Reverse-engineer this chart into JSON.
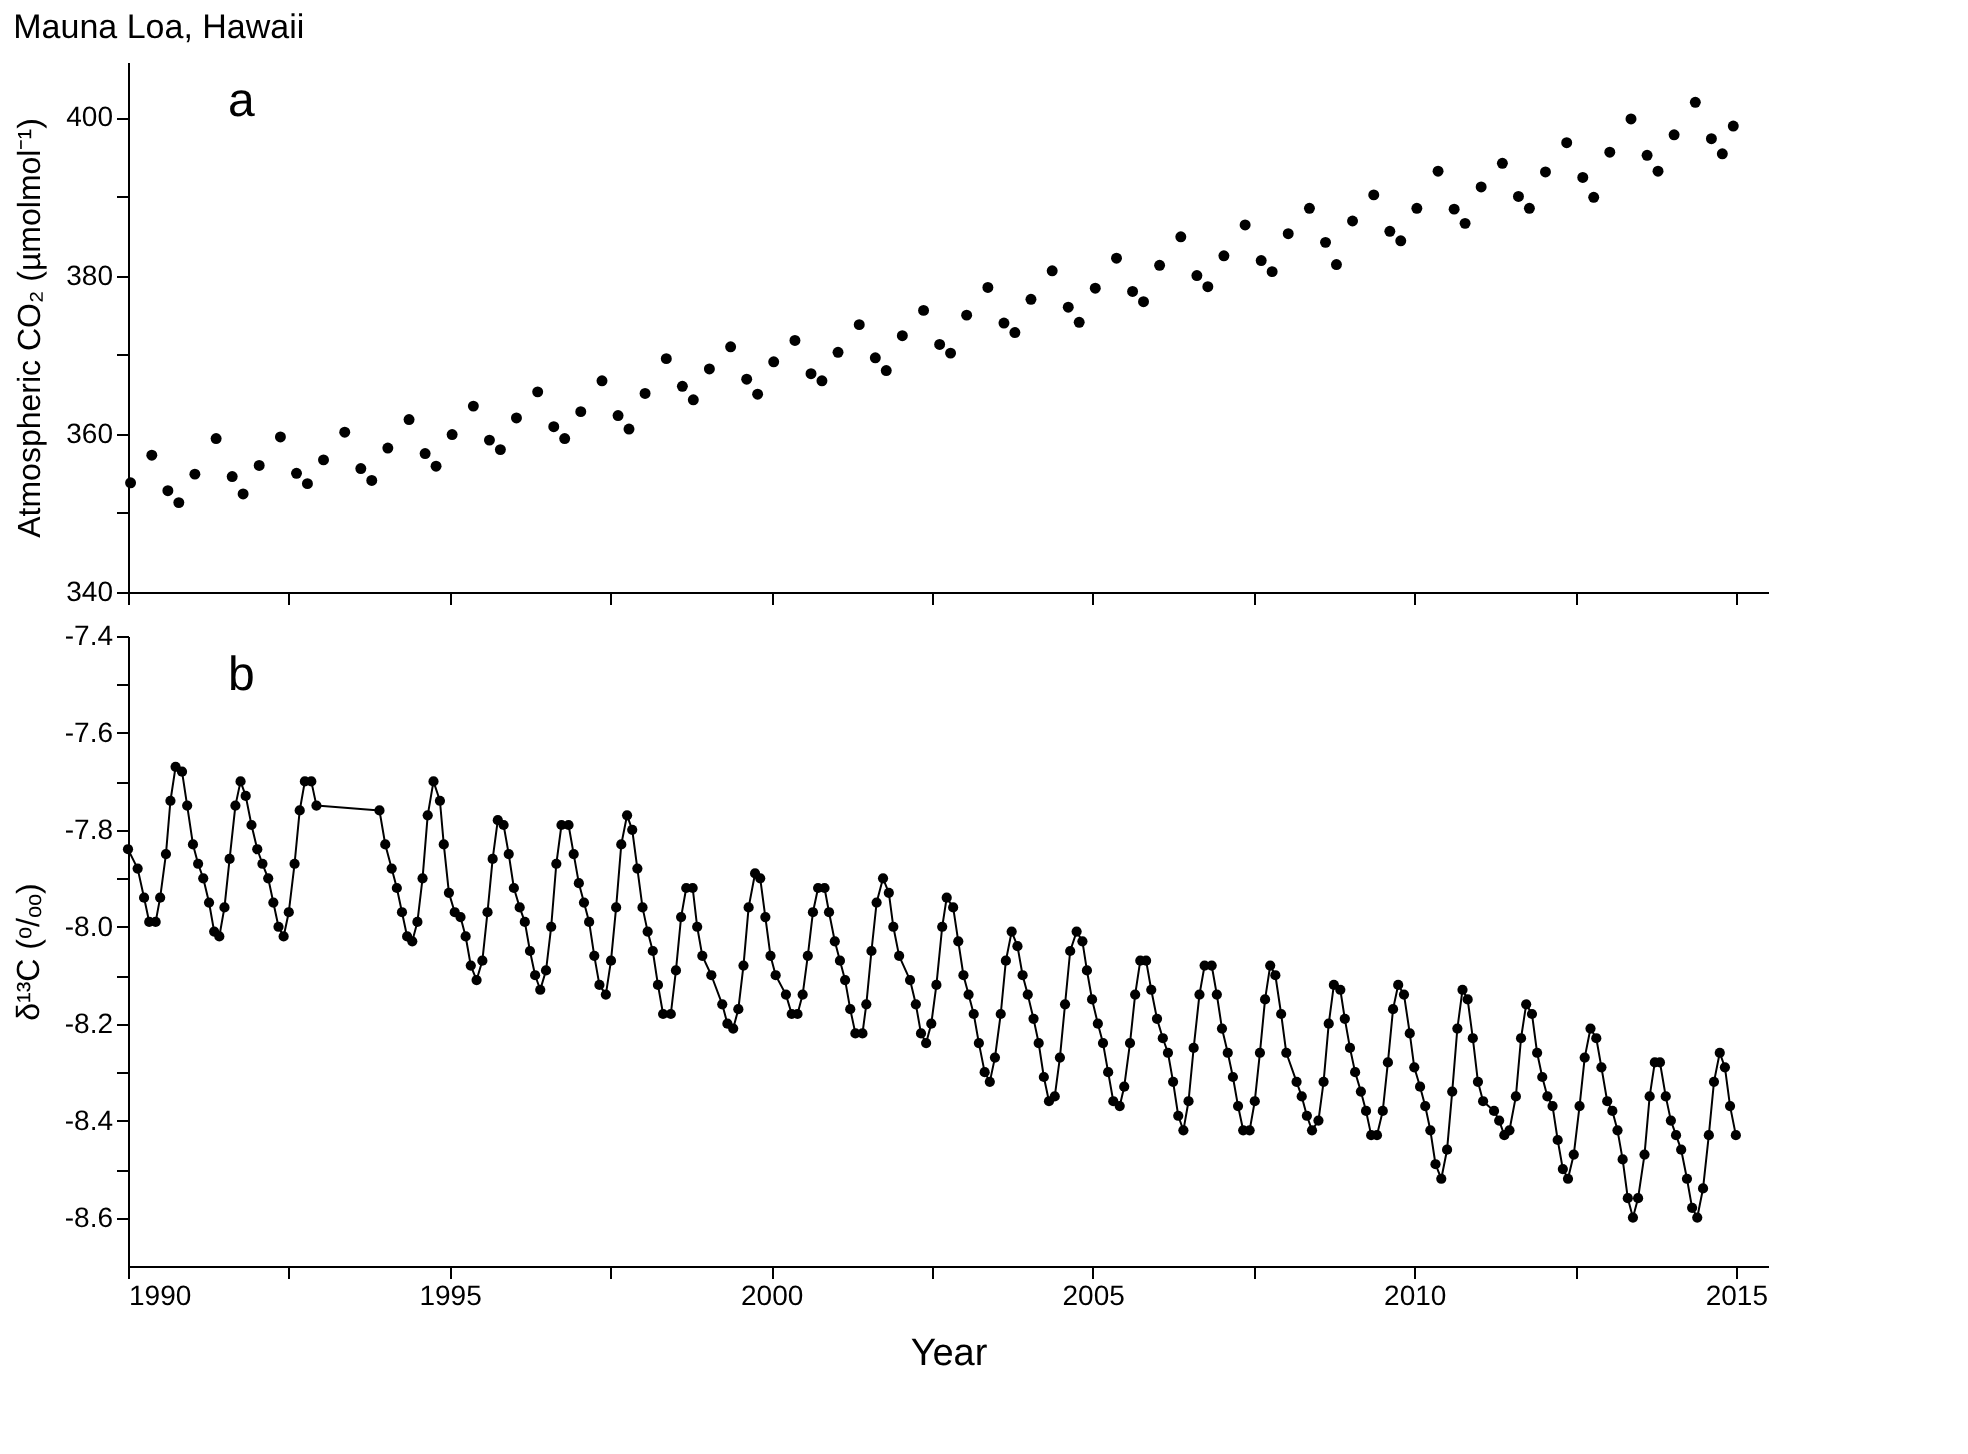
{
  "chart_data": [
    {
      "type": "scatter",
      "title": "Mauna Loa, Hawaii",
      "ylabel": "Atmospheric CO₂ (µmolmol⁻¹)",
      "annotations": [
        "a"
      ],
      "marker": "circle",
      "tick_labels": "y",
      "xlim": [
        1990,
        2015.5
      ],
      "xticks": [
        {
          "value": 1990,
          "label": null
        },
        {
          "value": 1992.5,
          "label": null
        },
        {
          "value": 1995,
          "label": null
        },
        {
          "value": 1997.5,
          "label": null
        },
        {
          "value": 2000,
          "label": null
        },
        {
          "value": 2002.5,
          "label": null
        },
        {
          "value": 2005,
          "label": null
        },
        {
          "value": 2007.5,
          "label": null
        },
        {
          "value": 2010,
          "label": null
        },
        {
          "value": 2012.5,
          "label": null
        },
        {
          "value": 2015,
          "label": null
        }
      ],
      "ylim": [
        340,
        407
      ],
      "yticks": [
        340,
        {
          "value": 350,
          "label": null
        },
        360,
        {
          "value": 370,
          "label": null
        },
        380,
        {
          "value": 390,
          "label": null
        },
        400
      ],
      "series": [
        {
          "color": "#000000",
          "x": [
            1990.04,
            1990.37,
            1990.62,
            1990.79,
            1991.04,
            1991.37,
            1991.62,
            1991.79,
            1992.04,
            1992.37,
            1992.62,
            1992.79,
            1993.04,
            1993.37,
            1993.62,
            1993.79,
            1994.04,
            1994.37,
            1994.62,
            1994.79,
            1995.04,
            1995.37,
            1995.62,
            1995.79,
            1996.04,
            1996.37,
            1996.62,
            1996.79,
            1997.04,
            1997.37,
            1997.62,
            1997.79,
            1998.04,
            1998.37,
            1998.62,
            1998.79,
            1999.04,
            1999.37,
            1999.62,
            1999.79,
            2000.04,
            2000.37,
            2000.62,
            2000.79,
            2001.04,
            2001.37,
            2001.62,
            2001.79,
            2002.04,
            2002.37,
            2002.62,
            2002.79,
            2003.04,
            2003.37,
            2003.62,
            2003.79,
            2004.04,
            2004.37,
            2004.62,
            2004.79,
            2005.04,
            2005.37,
            2005.62,
            2005.79,
            2006.04,
            2006.37,
            2006.62,
            2006.79,
            2007.04,
            2007.37,
            2007.62,
            2007.79,
            2008.04,
            2008.37,
            2008.62,
            2008.79,
            2009.04,
            2009.37,
            2009.62,
            2009.79,
            2010.04,
            2010.37,
            2010.62,
            2010.79,
            2011.04,
            2011.37,
            2011.62,
            2011.79,
            2012.04,
            2012.37,
            2012.62,
            2012.79,
            2013.04,
            2013.37,
            2013.62,
            2013.79,
            2014.04,
            2014.37,
            2014.62,
            2014.79,
            2014.96
          ],
          "values": [
            353.8,
            357.3,
            352.8,
            351.3,
            354.9,
            359.4,
            354.6,
            352.4,
            356.0,
            359.6,
            355.0,
            353.7,
            356.7,
            360.2,
            355.6,
            354.1,
            358.2,
            361.8,
            357.5,
            355.9,
            359.9,
            363.5,
            359.2,
            358.0,
            362.0,
            365.3,
            360.9,
            359.4,
            362.8,
            366.7,
            362.3,
            360.6,
            365.1,
            369.5,
            366.0,
            364.3,
            368.2,
            371.0,
            366.9,
            365.0,
            369.1,
            371.8,
            367.6,
            366.7,
            370.3,
            373.8,
            369.6,
            368.0,
            372.4,
            375.6,
            371.3,
            370.2,
            375.0,
            378.5,
            374.0,
            372.8,
            377.0,
            380.6,
            376.0,
            374.1,
            378.4,
            382.2,
            378.0,
            376.7,
            381.3,
            384.9,
            380.0,
            378.6,
            382.5,
            386.4,
            381.9,
            380.5,
            385.3,
            388.5,
            384.2,
            381.4,
            386.9,
            390.2,
            385.6,
            384.4,
            388.5,
            393.2,
            388.4,
            386.6,
            391.2,
            394.2,
            390.0,
            388.5,
            393.1,
            396.8,
            392.4,
            389.9,
            395.6,
            399.8,
            395.2,
            393.2,
            397.8,
            401.9,
            397.3,
            395.4,
            398.9
          ]
        }
      ]
    },
    {
      "type": "line",
      "xlabel": "Year",
      "ylabel": "δ¹³C (ᵒ/ₒₒ)",
      "annotations": [
        "b"
      ],
      "marker": "circle",
      "line_style": "solid",
      "xlim": [
        1990,
        2015.5
      ],
      "xticks": [
        1990,
        {
          "value": 1992.5,
          "label": null
        },
        1995,
        {
          "value": 1997.5,
          "label": null
        },
        2000,
        {
          "value": 2002.5,
          "label": null
        },
        2005,
        {
          "value": 2007.5,
          "label": null
        },
        2010,
        {
          "value": 2012.5,
          "label": null
        },
        2015
      ],
      "ylim": [
        -8.7,
        -7.4
      ],
      "yticks": [
        -7.4,
        {
          "value": -7.5,
          "label": null
        },
        -7.6,
        {
          "value": -7.7,
          "label": null
        },
        -7.8,
        {
          "value": -7.9,
          "label": null
        },
        {
          "value": -8.0,
          "label": "-8.0"
        },
        {
          "value": -8.1,
          "label": null
        },
        -8.2,
        {
          "value": -8.3,
          "label": null
        },
        -8.4,
        {
          "value": -8.5,
          "label": null
        },
        -8.6
      ],
      "series": [
        {
          "color": "#000000",
          "x": [
            1990.0,
            1990.15,
            1990.25,
            1990.33,
            1990.43,
            1990.5,
            1990.59,
            1990.66,
            1990.74,
            1990.84,
            1990.92,
            1991.01,
            1991.09,
            1991.17,
            1991.26,
            1991.34,
            1991.42,
            1991.5,
            1991.58,
            1991.67,
            1991.75,
            1991.83,
            1991.92,
            1992.01,
            1992.09,
            1992.18,
            1992.26,
            1992.34,
            1992.42,
            1992.5,
            1992.59,
            1992.67,
            1992.75,
            1992.85,
            1992.93,
            1993.91,
            1994.0,
            1994.1,
            1994.18,
            1994.26,
            1994.34,
            1994.42,
            1994.5,
            1994.58,
            1994.66,
            1994.75,
            1994.85,
            1994.91,
            1994.99,
            1995.08,
            1995.17,
            1995.25,
            1995.33,
            1995.42,
            1995.51,
            1995.59,
            1995.67,
            1995.75,
            1995.84,
            1995.92,
            1996.0,
            1996.09,
            1996.17,
            1996.25,
            1996.33,
            1996.41,
            1996.5,
            1996.58,
            1996.66,
            1996.74,
            1996.85,
            1996.93,
            1997.01,
            1997.09,
            1997.17,
            1997.25,
            1997.33,
            1997.43,
            1997.51,
            1997.59,
            1997.67,
            1997.76,
            1997.84,
            1997.92,
            1998.0,
            1998.08,
            1998.16,
            1998.24,
            1998.32,
            1998.44,
            1998.52,
            1998.6,
            1998.68,
            1998.78,
            1998.85,
            1998.93,
            1999.07,
            1999.24,
            1999.32,
            1999.41,
            1999.49,
            1999.57,
            1999.65,
            1999.75,
            1999.83,
            1999.91,
            1999.99,
            2000.07,
            2000.23,
            2000.32,
            2000.41,
            2000.49,
            2000.57,
            2000.65,
            2000.73,
            2000.83,
            2000.9,
            2000.99,
            2001.07,
            2001.15,
            2001.23,
            2001.31,
            2001.42,
            2001.48,
            2001.56,
            2001.64,
            2001.74,
            2001.83,
            2001.9,
            2001.99,
            2002.16,
            2002.25,
            2002.33,
            2002.41,
            2002.49,
            2002.57,
            2002.66,
            2002.73,
            2002.83,
            2002.91,
            2002.99,
            2003.07,
            2003.15,
            2003.23,
            2003.32,
            2003.4,
            2003.48,
            2003.57,
            2003.65,
            2003.74,
            2003.83,
            2003.91,
            2003.99,
            2004.08,
            2004.16,
            2004.24,
            2004.32,
            2004.41,
            2004.49,
            2004.57,
            2004.65,
            2004.75,
            2004.84,
            2004.91,
            2004.99,
            2005.08,
            2005.16,
            2005.24,
            2005.32,
            2005.42,
            2005.49,
            2005.58,
            2005.66,
            2005.74,
            2005.83,
            2005.91,
            2006.0,
            2006.09,
            2006.17,
            2006.25,
            2006.33,
            2006.41,
            2006.49,
            2006.57,
            2006.66,
            2006.74,
            2006.85,
            2006.93,
            2007.01,
            2007.1,
            2007.18,
            2007.26,
            2007.34,
            2007.44,
            2007.52,
            2007.6,
            2007.68,
            2007.76,
            2007.84,
            2007.93,
            2008.01,
            2008.17,
            2008.25,
            2008.33,
            2008.41,
            2008.51,
            2008.59,
            2008.67,
            2008.75,
            2008.85,
            2008.92,
            2009.0,
            2009.08,
            2009.17,
            2009.25,
            2009.33,
            2009.42,
            2009.51,
            2009.59,
            2009.67,
            2009.75,
            2009.84,
            2009.93,
            2010.0,
            2010.09,
            2010.17,
            2010.25,
            2010.33,
            2010.42,
            2010.51,
            2010.59,
            2010.67,
            2010.75,
            2010.83,
            2010.91,
            2010.99,
            2011.07,
            2011.24,
            2011.32,
            2011.4,
            2011.48,
            2011.58,
            2011.66,
            2011.74,
            2011.83,
            2011.91,
            2011.99,
            2012.07,
            2012.15,
            2012.23,
            2012.31,
            2012.39,
            2012.48,
            2012.57,
            2012.65,
            2012.74,
            2012.83,
            2012.91,
            2013.0,
            2013.08,
            2013.16,
            2013.24,
            2013.32,
            2013.4,
            2013.48,
            2013.58,
            2013.66,
            2013.74,
            2013.82,
            2013.91,
            2013.99,
            2014.07,
            2014.15,
            2014.24,
            2014.32,
            2014.4,
            2014.49,
            2014.58,
            2014.66,
            2014.75,
            2014.83,
            2014.91,
            2015.0
          ],
          "values": [
            -7.84,
            -7.88,
            -7.94,
            -7.99,
            -7.99,
            -7.94,
            -7.85,
            -7.74,
            -7.67,
            -7.68,
            -7.75,
            -7.83,
            -7.87,
            -7.9,
            -7.95,
            -8.01,
            -8.02,
            -7.96,
            -7.86,
            -7.75,
            -7.7,
            -7.73,
            -7.79,
            -7.84,
            -7.87,
            -7.9,
            -7.95,
            -8.0,
            -8.02,
            -7.97,
            -7.87,
            -7.76,
            -7.7,
            -7.7,
            -7.75,
            -7.76,
            -7.83,
            -7.88,
            -7.92,
            -7.97,
            -8.02,
            -8.03,
            -7.99,
            -7.9,
            -7.77,
            -7.7,
            -7.74,
            -7.83,
            -7.93,
            -7.97,
            -7.98,
            -8.02,
            -8.08,
            -8.11,
            -8.07,
            -7.97,
            -7.86,
            -7.78,
            -7.79,
            -7.85,
            -7.92,
            -7.96,
            -7.99,
            -8.05,
            -8.1,
            -8.13,
            -8.09,
            -8.0,
            -7.87,
            -7.79,
            -7.79,
            -7.85,
            -7.91,
            -7.95,
            -7.99,
            -8.06,
            -8.12,
            -8.14,
            -8.07,
            -7.96,
            -7.83,
            -7.77,
            -7.8,
            -7.88,
            -7.96,
            -8.01,
            -8.05,
            -8.12,
            -8.18,
            -8.18,
            -8.09,
            -7.98,
            -7.92,
            -7.92,
            -8.0,
            -8.06,
            -8.1,
            -8.16,
            -8.2,
            -8.21,
            -8.17,
            -8.08,
            -7.96,
            -7.89,
            -7.9,
            -7.98,
            -8.06,
            -8.1,
            -8.14,
            -8.18,
            -8.18,
            -8.14,
            -8.06,
            -7.97,
            -7.92,
            -7.92,
            -7.97,
            -8.03,
            -8.07,
            -8.11,
            -8.17,
            -8.22,
            -8.22,
            -8.16,
            -8.05,
            -7.95,
            -7.9,
            -7.93,
            -8.0,
            -8.06,
            -8.11,
            -8.16,
            -8.22,
            -8.24,
            -8.2,
            -8.12,
            -8.0,
            -7.94,
            -7.96,
            -8.03,
            -8.1,
            -8.14,
            -8.18,
            -8.24,
            -8.3,
            -8.32,
            -8.27,
            -8.18,
            -8.07,
            -8.01,
            -8.04,
            -8.1,
            -8.14,
            -8.19,
            -8.24,
            -8.31,
            -8.36,
            -8.35,
            -8.27,
            -8.16,
            -8.05,
            -8.01,
            -8.03,
            -8.09,
            -8.15,
            -8.2,
            -8.24,
            -8.3,
            -8.36,
            -8.37,
            -8.33,
            -8.24,
            -8.14,
            -8.07,
            -8.07,
            -8.13,
            -8.19,
            -8.23,
            -8.26,
            -8.32,
            -8.39,
            -8.42,
            -8.36,
            -8.25,
            -8.14,
            -8.08,
            -8.08,
            -8.14,
            -8.21,
            -8.26,
            -8.31,
            -8.37,
            -8.42,
            -8.42,
            -8.36,
            -8.26,
            -8.15,
            -8.08,
            -8.1,
            -8.18,
            -8.26,
            -8.32,
            -8.35,
            -8.39,
            -8.42,
            -8.4,
            -8.32,
            -8.2,
            -8.12,
            -8.13,
            -8.19,
            -8.25,
            -8.3,
            -8.34,
            -8.38,
            -8.43,
            -8.43,
            -8.38,
            -8.28,
            -8.17,
            -8.12,
            -8.14,
            -8.22,
            -8.29,
            -8.33,
            -8.37,
            -8.42,
            -8.49,
            -8.52,
            -8.46,
            -8.34,
            -8.21,
            -8.13,
            -8.15,
            -8.23,
            -8.32,
            -8.36,
            -8.38,
            -8.4,
            -8.43,
            -8.42,
            -8.35,
            -8.23,
            -8.16,
            -8.18,
            -8.26,
            -8.31,
            -8.35,
            -8.37,
            -8.44,
            -8.5,
            -8.52,
            -8.47,
            -8.37,
            -8.27,
            -8.21,
            -8.23,
            -8.29,
            -8.36,
            -8.38,
            -8.42,
            -8.48,
            -8.56,
            -8.6,
            -8.56,
            -8.47,
            -8.35,
            -8.28,
            -8.28,
            -8.35,
            -8.4,
            -8.43,
            -8.46,
            -8.52,
            -8.58,
            -8.6,
            -8.54,
            -8.43,
            -8.32,
            -8.26,
            -8.29,
            -8.37,
            -8.43
          ]
        }
      ]
    }
  ]
}
